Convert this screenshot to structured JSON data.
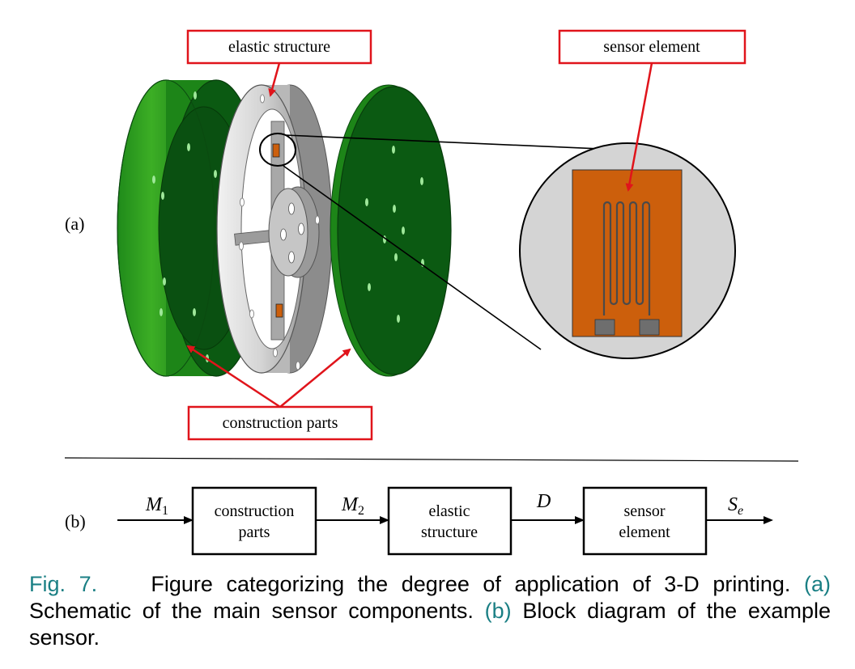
{
  "part_a": {
    "label": "(a)",
    "callouts": {
      "elastic_structure": "elastic structure",
      "sensor_element": "sensor element",
      "construction_parts": "construction parts"
    }
  },
  "part_b": {
    "label": "(b)",
    "blocks": [
      {
        "line1": "construction",
        "line2": "parts"
      },
      {
        "line1": "elastic",
        "line2": "structure"
      },
      {
        "line1": "sensor",
        "line2": "element"
      }
    ],
    "signals": [
      {
        "symbol": "M",
        "sub": "1"
      },
      {
        "symbol": "M",
        "sub": "2"
      },
      {
        "symbol": "D",
        "sub": ""
      },
      {
        "symbol": "S",
        "sub": "e"
      }
    ]
  },
  "caption": {
    "fig_label": "Fig. 7.",
    "main": "Figure categorizing the degree of application of 3-D printing.",
    "a_ref": "(a)",
    "a_text": "Schematic of the main sensor components.",
    "b_ref": "(b)",
    "b_text": "Block diagram of the example sensor."
  },
  "colors": {
    "green_dark": "#0a5a14",
    "green_light": "#2e9a1f",
    "sensor_orange": "#cc5f0c",
    "callout_red": "#e0141b",
    "caption_teal": "#1a7f84"
  }
}
